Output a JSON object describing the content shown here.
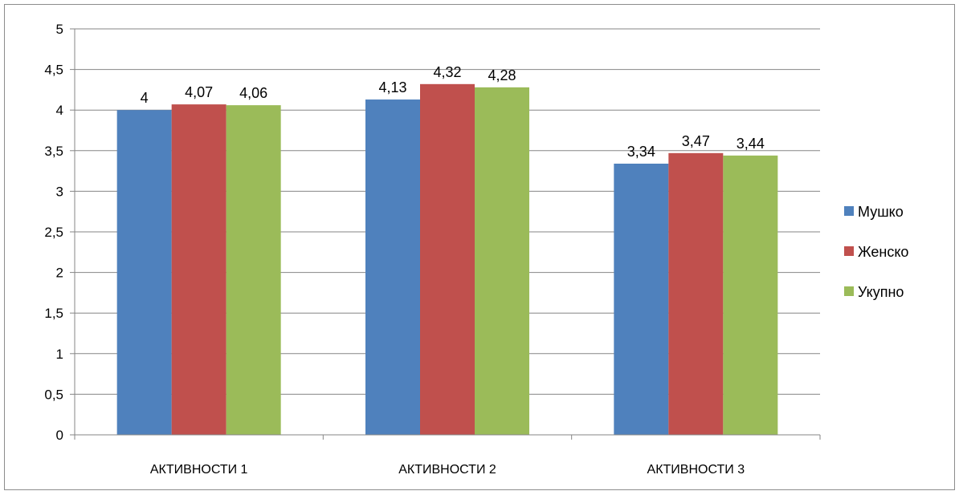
{
  "chart_data": {
    "type": "bar",
    "title": "",
    "xlabel": "",
    "ylabel": "",
    "categories": [
      "АКТИВНОСТИ 1",
      "АКТИВНОСТИ 2",
      "АКТИВНОСТИ 3"
    ],
    "series": [
      {
        "name": "Мушко",
        "values": [
          4,
          4.13,
          3.34
        ],
        "labels": [
          "4",
          "4,13",
          "3,34"
        ],
        "color": "#4f81bd"
      },
      {
        "name": "Женско",
        "values": [
          4.07,
          4.32,
          3.47
        ],
        "labels": [
          "4,07",
          "4,32",
          "3,47"
        ],
        "color": "#c0504d"
      },
      {
        "name": "Укупно",
        "values": [
          4.06,
          4.28,
          3.44
        ],
        "labels": [
          "4,06",
          "4,28",
          "3,44"
        ],
        "color": "#9bbb59"
      }
    ],
    "ylim": [
      0,
      5
    ],
    "yticks": [
      0,
      0.5,
      1,
      1.5,
      2,
      2.5,
      3,
      3.5,
      4,
      4.5,
      5
    ],
    "ytick_labels": [
      "0",
      "0,5",
      "1",
      "1,5",
      "2",
      "2,5",
      "3",
      "3,5",
      "4",
      "4,5",
      "5"
    ],
    "grid": true,
    "legend_position": "right",
    "gridline_color": "#868686"
  }
}
